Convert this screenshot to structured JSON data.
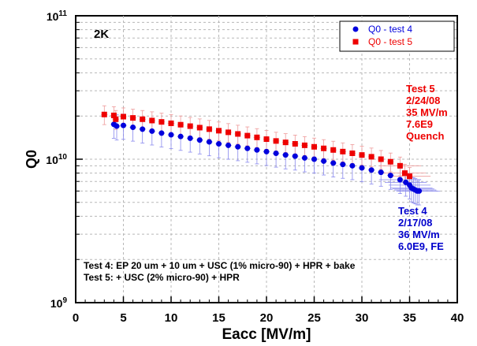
{
  "chart_data": {
    "type": "scatter",
    "xlabel": "Eacc [MV/m]",
    "ylabel": "Q0",
    "xlim": [
      0,
      40
    ],
    "ylim": [
      1000000000,
      100000000000
    ],
    "yscale": "log",
    "xticks": [
      "0",
      "5",
      "10",
      "15",
      "20",
      "25",
      "30",
      "35",
      "40"
    ],
    "yticks": [
      {
        "value": 1000000000,
        "base": "10",
        "exp": "9"
      },
      {
        "value": 10000000000,
        "base": "10",
        "exp": "10"
      },
      {
        "value": 100000000000,
        "base": "10",
        "exp": "11"
      }
    ],
    "grid": true,
    "legend_position": "top-right",
    "corner_label": "2K",
    "series": [
      {
        "name": "Q0 - test 4",
        "color": "#0000dd",
        "marker": "circle",
        "x": [
          4.0,
          4.3,
          5.0,
          6.0,
          7.0,
          8.0,
          9.0,
          10.0,
          11.0,
          12.0,
          13.0,
          14.0,
          15.0,
          16.0,
          17.0,
          18.0,
          19.0,
          20.0,
          21.0,
          22.0,
          23.0,
          24.0,
          25.0,
          26.0,
          27.0,
          28.0,
          29.0,
          30.0,
          31.0,
          32.0,
          33.0,
          34.0,
          34.6,
          35.0,
          35.2,
          35.4,
          35.6,
          35.8,
          36.0
        ],
        "y": [
          17500000000.0,
          17000000000.0,
          17200000000.0,
          16700000000.0,
          16200000000.0,
          15700000000.0,
          15200000000.0,
          14800000000.0,
          14400000000.0,
          14000000000.0,
          13600000000.0,
          13200000000.0,
          12800000000.0,
          12500000000.0,
          12200000000.0,
          11900000000.0,
          11600000000.0,
          11300000000.0,
          11000000000.0,
          10700000000.0,
          10500000000.0,
          10200000000.0,
          10000000000.0,
          9700000000.0,
          9400000000.0,
          9200000000.0,
          9000000000.0,
          8700000000.0,
          8400000000.0,
          8100000000.0,
          7700000000.0,
          7200000000.0,
          6900000000.0,
          6600000000.0,
          6300000000.0,
          6200000000.0,
          6100000000.0,
          6000000000.0,
          6000000000.0
        ]
      },
      {
        "name": "Q0 - test 5",
        "color": "#ee0000",
        "marker": "square",
        "x": [
          3.0,
          4.0,
          4.2,
          5.0,
          6.0,
          7.0,
          8.0,
          9.0,
          10.0,
          11.0,
          12.0,
          13.0,
          14.0,
          15.0,
          16.0,
          17.0,
          18.0,
          19.0,
          20.0,
          21.0,
          22.0,
          23.0,
          24.0,
          25.0,
          26.0,
          27.0,
          28.0,
          29.0,
          30.0,
          31.0,
          32.0,
          33.0,
          34.0,
          34.5,
          35.0
        ],
        "y": [
          20500000000.0,
          20200000000.0,
          19000000000.0,
          19800000000.0,
          19400000000.0,
          19000000000.0,
          18600000000.0,
          18200000000.0,
          17800000000.0,
          17400000000.0,
          17000000000.0,
          16600000000.0,
          16200000000.0,
          15800000000.0,
          15400000000.0,
          15000000000.0,
          14600000000.0,
          14200000000.0,
          13800000000.0,
          13400000000.0,
          13100000000.0,
          12800000000.0,
          12500000000.0,
          12200000000.0,
          11900000000.0,
          11600000000.0,
          11300000000.0,
          11000000000.0,
          10700000000.0,
          10400000000.0,
          10000000000.0,
          9600000000.0,
          9000000000.0,
          8000000000.0,
          7600000000.0
        ]
      }
    ],
    "annotations": {
      "test5": [
        "Test 5",
        "2/24/08",
        "35 MV/m",
        "7.6E9",
        "Quench"
      ],
      "test4": [
        "Test 4",
        "2/17/08",
        "36 MV/m",
        "6.0E9, FE"
      ],
      "notes": [
        "Test 4: EP 20 um + 10 um + USC (1% micro-90) + HPR + bake",
        "Test 5: + USC (2% micro-90) + HPR"
      ]
    }
  }
}
